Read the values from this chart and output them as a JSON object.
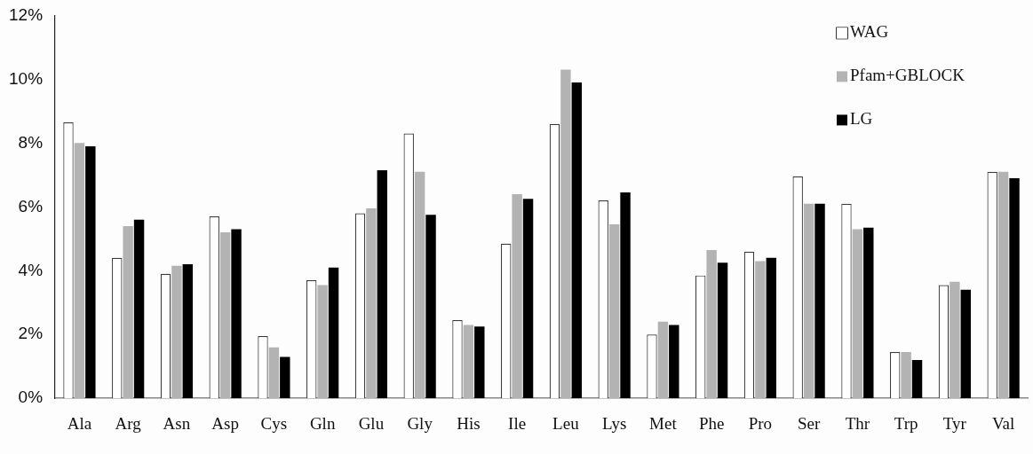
{
  "chart_data": {
    "type": "bar",
    "categories": [
      "Ala",
      "Arg",
      "Asn",
      "Asp",
      "Cys",
      "Gln",
      "Glu",
      "Gly",
      "His",
      "Ile",
      "Leu",
      "Lys",
      "Met",
      "Phe",
      "Pro",
      "Ser",
      "Thr",
      "Trp",
      "Tyr",
      "Val"
    ],
    "series": [
      {
        "name": "WAG",
        "color": "#ffffff",
        "values": [
          8.65,
          4.4,
          3.9,
          5.7,
          1.95,
          3.7,
          5.8,
          8.3,
          2.45,
          4.85,
          8.6,
          6.2,
          2.0,
          3.85,
          4.6,
          6.95,
          6.1,
          1.45,
          3.55,
          7.1
        ]
      },
      {
        "name": "Pfam+GBLOCK",
        "color": "#b3b3b3",
        "values": [
          8.0,
          5.4,
          4.15,
          5.2,
          1.6,
          3.55,
          5.95,
          7.1,
          2.3,
          6.4,
          10.3,
          5.45,
          2.4,
          4.65,
          4.3,
          6.1,
          5.3,
          1.45,
          3.65,
          7.1
        ]
      },
      {
        "name": "LG",
        "color": "#000000",
        "values": [
          7.9,
          5.6,
          4.2,
          5.3,
          1.3,
          4.1,
          7.15,
          5.75,
          2.25,
          6.25,
          9.9,
          6.45,
          2.3,
          4.25,
          4.4,
          6.1,
          5.35,
          1.2,
          3.4,
          6.9
        ]
      }
    ],
    "ylim": [
      0,
      12
    ],
    "yticks": [
      {
        "value": 0,
        "label": "0%"
      },
      {
        "value": 2,
        "label": "2%"
      },
      {
        "value": 4,
        "label": "4%"
      },
      {
        "value": 6,
        "label": "6%"
      },
      {
        "value": 8,
        "label": "8%"
      },
      {
        "value": 10,
        "label": "10%"
      },
      {
        "value": 12,
        "label": "12%"
      }
    ],
    "grid": false,
    "legend": "top right"
  }
}
